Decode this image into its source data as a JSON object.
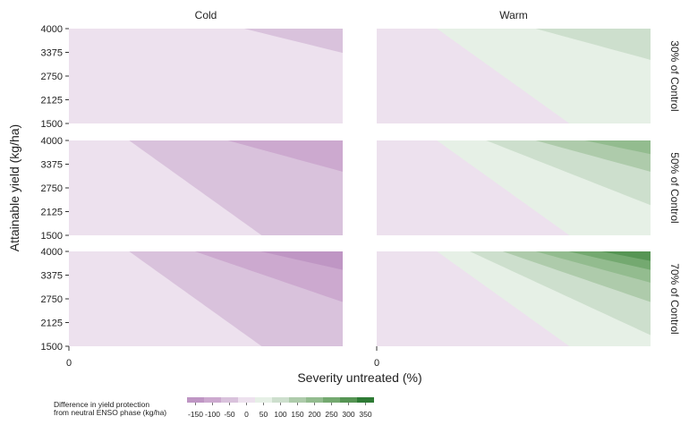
{
  "chart_data": {
    "type": "contour",
    "columns": [
      "Cold",
      "Warm"
    ],
    "rows": [
      "30% of Control",
      "50% of Control",
      "70% of Control"
    ],
    "xlabel": "Severity untreated (%)",
    "ylabel": "Attainable yield (kg/ha)",
    "x_tick_labels": [
      "0"
    ],
    "y_ticks": [
      4000,
      3375,
      2750,
      2125,
      1500
    ],
    "ylim": [
      1500,
      4000
    ],
    "legend": {
      "title_lines": [
        "Difference in yield protection",
        "from neutral ENSO phase (kg/ha)"
      ],
      "levels": [
        -150,
        -100,
        -50,
        0,
        50,
        100,
        150,
        200,
        250,
        300,
        350
      ],
      "colors": [
        "#bf96c4",
        "#cca9cf",
        "#d9c2dc",
        "#ede1ee",
        "#e6f0e6",
        "#cddfcd",
        "#aecbab",
        "#93bc8f",
        "#74a970",
        "#569554",
        "#2e7b35"
      ],
      "position": "bottom-left"
    },
    "panels": [
      {
        "column": "Cold",
        "row": "30% of Control",
        "levels_present": [
          0,
          -50
        ]
      },
      {
        "column": "Warm",
        "row": "30% of Control",
        "levels_present": [
          0,
          50,
          100
        ]
      },
      {
        "column": "Cold",
        "row": "50% of Control",
        "levels_present": [
          0,
          -50,
          -100
        ]
      },
      {
        "column": "Warm",
        "row": "50% of Control",
        "levels_present": [
          0,
          50,
          100,
          150,
          200
        ]
      },
      {
        "column": "Cold",
        "row": "70% of Control",
        "levels_present": [
          0,
          -50,
          -100,
          -150
        ]
      },
      {
        "column": "Warm",
        "row": "70% of Control",
        "levels_present": [
          0,
          50,
          100,
          150,
          200,
          250,
          300
        ]
      }
    ]
  }
}
